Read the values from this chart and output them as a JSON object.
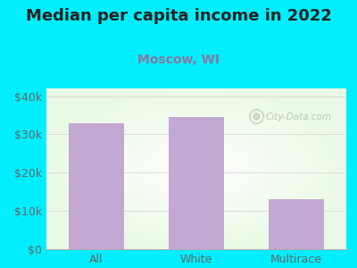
{
  "title": "Median per capita income in 2022",
  "subtitle": "Moscow, WI",
  "categories": [
    "All",
    "White",
    "Multirace"
  ],
  "values": [
    33000,
    34500,
    13000
  ],
  "bar_color": "#c4a8d4",
  "background_color": "#00eeff",
  "plot_bg_top": "#e8f5e8",
  "plot_bg_center": "#ffffff",
  "title_fontsize": 13,
  "title_color": "#222222",
  "subtitle_fontsize": 10,
  "subtitle_color": "#8878a0",
  "tick_label_color": "#666666",
  "ylim": [
    0,
    42000
  ],
  "yticks": [
    0,
    10000,
    20000,
    30000,
    40000
  ],
  "ytick_labels": [
    "$0",
    "$10k",
    "$20k",
    "$30k",
    "$40k"
  ],
  "watermark_text": "City-Data.com",
  "watermark_color": "#aabbaa",
  "grid_color": "#dddddd"
}
